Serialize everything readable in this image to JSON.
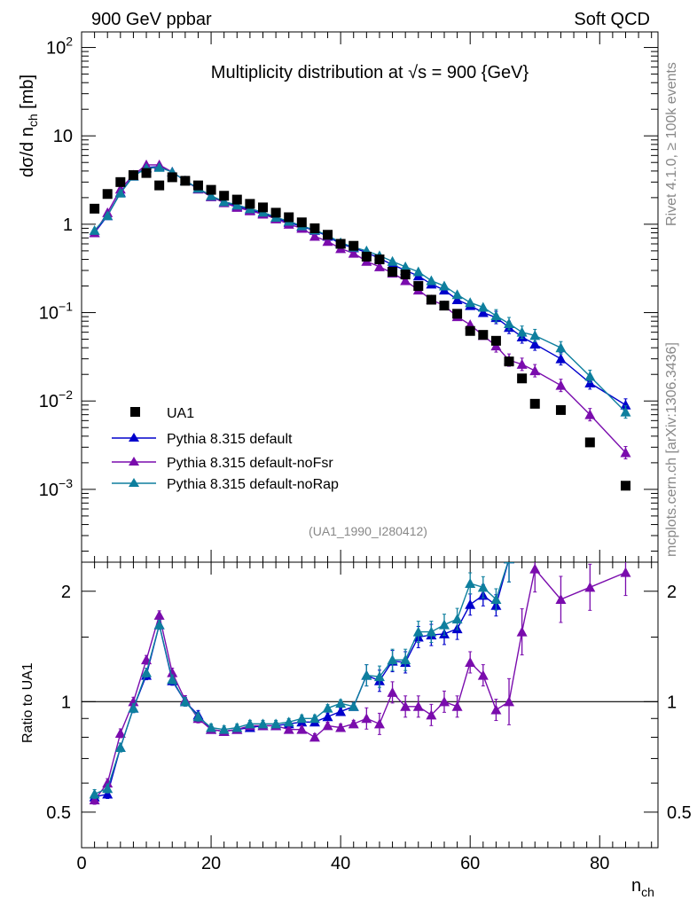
{
  "header": {
    "left": "900 GeV ppbar",
    "right": "Soft QCD"
  },
  "side": {
    "rivet": "Rivet 4.1.0, ≥ 100k events",
    "mcplots": "mcplots.cern.ch [arXiv:1306.3436]"
  },
  "analysis_id": "(UA1_1990_I280412)",
  "colors": {
    "data": "#000000",
    "default": "#0000cc",
    "noFsr": "#7a0cad",
    "noRap": "#0e7f9e"
  },
  "chart_data": [
    {
      "type": "scatter",
      "title": "Multiplicity distribution at √s = 900 {GeV}",
      "ylabel": "dσ/d n_ch [mb]",
      "xlabel": "n_ch",
      "yscale": "log",
      "xlim": [
        0,
        89
      ],
      "ylim": [
        0.00015,
        150
      ],
      "yticks": [
        {
          "v": 0.001,
          "b": "10",
          "e": "−3"
        },
        {
          "v": 0.01,
          "b": "10",
          "e": "−2"
        },
        {
          "v": 0.1,
          "b": "10",
          "e": "−1"
        },
        {
          "v": 1,
          "b": "1",
          "e": ""
        },
        {
          "v": 10,
          "b": "10",
          "e": ""
        },
        {
          "v": 100,
          "b": "10",
          "e": "2"
        }
      ],
      "legend": [
        "UA1",
        "Pythia 8.315 default",
        "Pythia 8.315 default-noFsr",
        "Pythia 8.315 default-noRap"
      ],
      "data": {
        "x": [
          2,
          4,
          6,
          8,
          10,
          12,
          14,
          16,
          18,
          20,
          22,
          24,
          26,
          28,
          30,
          32,
          34,
          36,
          38,
          40,
          42,
          44,
          46,
          48,
          50,
          52,
          54,
          56,
          58,
          60,
          62,
          64,
          66,
          68,
          70,
          74,
          78.5,
          84
        ],
        "y": [
          1.5,
          2.2,
          3.0,
          3.6,
          3.8,
          2.75,
          3.4,
          3.1,
          2.75,
          2.45,
          2.1,
          1.9,
          1.7,
          1.55,
          1.35,
          1.2,
          1.05,
          0.9,
          0.76,
          0.6,
          0.57,
          0.43,
          0.4,
          0.29,
          0.27,
          0.2,
          0.14,
          0.12,
          0.097,
          0.062,
          0.056,
          0.048,
          0.028,
          0.018,
          0.0093,
          0.0079,
          0.0034,
          0.0011
        ]
      },
      "series": [
        {
          "name": "default",
          "x": [
            2,
            4,
            6,
            8,
            10,
            12,
            14,
            16,
            18,
            20,
            22,
            24,
            26,
            28,
            30,
            32,
            34,
            36,
            38,
            40,
            42,
            44,
            46,
            48,
            50,
            52,
            54,
            56,
            58,
            60,
            62,
            64,
            66,
            68,
            70,
            74,
            78.5,
            84
          ],
          "y": [
            0.8,
            1.25,
            2.3,
            3.5,
            4.4,
            4.5,
            3.9,
            3.1,
            2.55,
            2.05,
            1.8,
            1.6,
            1.45,
            1.33,
            1.17,
            1.05,
            0.94,
            0.85,
            0.73,
            0.6,
            0.54,
            0.48,
            0.41,
            0.35,
            0.3,
            0.26,
            0.21,
            0.18,
            0.14,
            0.12,
            0.1,
            0.088,
            0.068,
            0.053,
            0.044,
            0.03,
            0.016,
            0.009
          ]
        },
        {
          "name": "noFsr",
          "x": [
            2,
            4,
            6,
            8,
            10,
            12,
            14,
            16,
            18,
            20,
            22,
            24,
            26,
            28,
            30,
            32,
            34,
            36,
            38,
            40,
            42,
            44,
            46,
            48,
            50,
            52,
            54,
            56,
            58,
            60,
            62,
            64,
            66,
            68,
            70,
            74,
            78.5,
            84
          ],
          "y": [
            0.8,
            1.35,
            2.5,
            3.6,
            4.7,
            4.7,
            3.9,
            3.1,
            2.5,
            2.05,
            1.75,
            1.55,
            1.42,
            1.3,
            1.15,
            1.0,
            0.9,
            0.73,
            0.64,
            0.53,
            0.47,
            0.38,
            0.33,
            0.28,
            0.23,
            0.18,
            0.14,
            0.12,
            0.09,
            0.073,
            0.055,
            0.042,
            0.029,
            0.026,
            0.022,
            0.015,
            0.007,
            0.0026
          ]
        },
        {
          "name": "noRap",
          "x": [
            2,
            4,
            6,
            8,
            10,
            12,
            14,
            16,
            18,
            20,
            22,
            24,
            26,
            28,
            30,
            32,
            34,
            36,
            38,
            40,
            42,
            44,
            46,
            48,
            50,
            52,
            54,
            56,
            58,
            60,
            62,
            64,
            66,
            68,
            70,
            74,
            78.5,
            84
          ],
          "y": [
            0.85,
            1.25,
            2.25,
            3.5,
            4.3,
            4.4,
            3.9,
            3.1,
            2.55,
            2.1,
            1.8,
            1.65,
            1.5,
            1.37,
            1.2,
            1.08,
            0.96,
            0.86,
            0.75,
            0.62,
            0.55,
            0.5,
            0.44,
            0.38,
            0.33,
            0.29,
            0.23,
            0.2,
            0.16,
            0.13,
            0.115,
            0.092,
            0.075,
            0.06,
            0.055,
            0.04,
            0.019,
            0.0075
          ]
        }
      ]
    },
    {
      "type": "line",
      "ylabel": "Ratio to UA1",
      "xlabel": "n_ch",
      "yscale": "log",
      "xlim": [
        0,
        89
      ],
      "ylim": [
        0.4,
        2.4
      ],
      "yticks": [
        {
          "v": 0.5,
          "label": "0.5"
        },
        {
          "v": 1,
          "label": "1"
        },
        {
          "v": 2,
          "label": "2"
        }
      ],
      "xticks": [
        0,
        20,
        40,
        60,
        80
      ],
      "series": [
        {
          "name": "default",
          "x": [
            2,
            4,
            6,
            8,
            10,
            12,
            14,
            16,
            18,
            20,
            22,
            24,
            26,
            28,
            30,
            32,
            34,
            36,
            38,
            40,
            42,
            44,
            46,
            48,
            50,
            52,
            54,
            56,
            58,
            60,
            62,
            64,
            66
          ],
          "y": [
            0.55,
            0.56,
            0.75,
            0.96,
            1.18,
            1.62,
            1.14,
            1.0,
            0.92,
            0.84,
            0.83,
            0.84,
            0.85,
            0.86,
            0.86,
            0.87,
            0.88,
            0.88,
            0.91,
            0.94,
            0.97,
            1.18,
            1.14,
            1.29,
            1.28,
            1.5,
            1.52,
            1.53,
            1.58,
            1.84,
            1.95,
            1.83,
            2.45
          ]
        },
        {
          "name": "noFsr",
          "x": [
            2,
            4,
            6,
            8,
            10,
            12,
            14,
            16,
            18,
            20,
            22,
            24,
            26,
            28,
            30,
            32,
            34,
            36,
            38,
            40,
            42,
            44,
            46,
            48,
            50,
            52,
            54,
            56,
            58,
            60,
            62,
            64,
            66,
            68,
            70,
            74,
            78.5,
            84
          ],
          "y": [
            0.54,
            0.6,
            0.82,
            1.0,
            1.3,
            1.72,
            1.2,
            1.01,
            0.9,
            0.84,
            0.83,
            0.84,
            0.86,
            0.86,
            0.86,
            0.84,
            0.84,
            0.8,
            0.86,
            0.85,
            0.87,
            0.9,
            0.87,
            1.06,
            0.97,
            0.97,
            0.92,
            1.0,
            0.97,
            1.28,
            1.18,
            0.95,
            1.0,
            1.55,
            2.3,
            1.9,
            2.05,
            2.25
          ]
        },
        {
          "name": "noRap",
          "x": [
            2,
            4,
            6,
            8,
            10,
            12,
            14,
            16,
            18,
            20,
            22,
            24,
            26,
            28,
            30,
            32,
            34,
            36,
            38,
            40,
            42,
            44,
            46,
            48,
            50,
            52,
            54,
            56,
            58,
            60,
            62,
            64,
            66
          ],
          "y": [
            0.56,
            0.58,
            0.75,
            0.96,
            1.2,
            1.62,
            1.15,
            1.0,
            0.91,
            0.85,
            0.84,
            0.85,
            0.87,
            0.87,
            0.87,
            0.88,
            0.9,
            0.9,
            0.96,
            0.99,
            0.97,
            1.18,
            1.17,
            1.3,
            1.3,
            1.55,
            1.55,
            1.62,
            1.68,
            2.1,
            2.05,
            1.9,
            2.45
          ]
        }
      ]
    }
  ]
}
